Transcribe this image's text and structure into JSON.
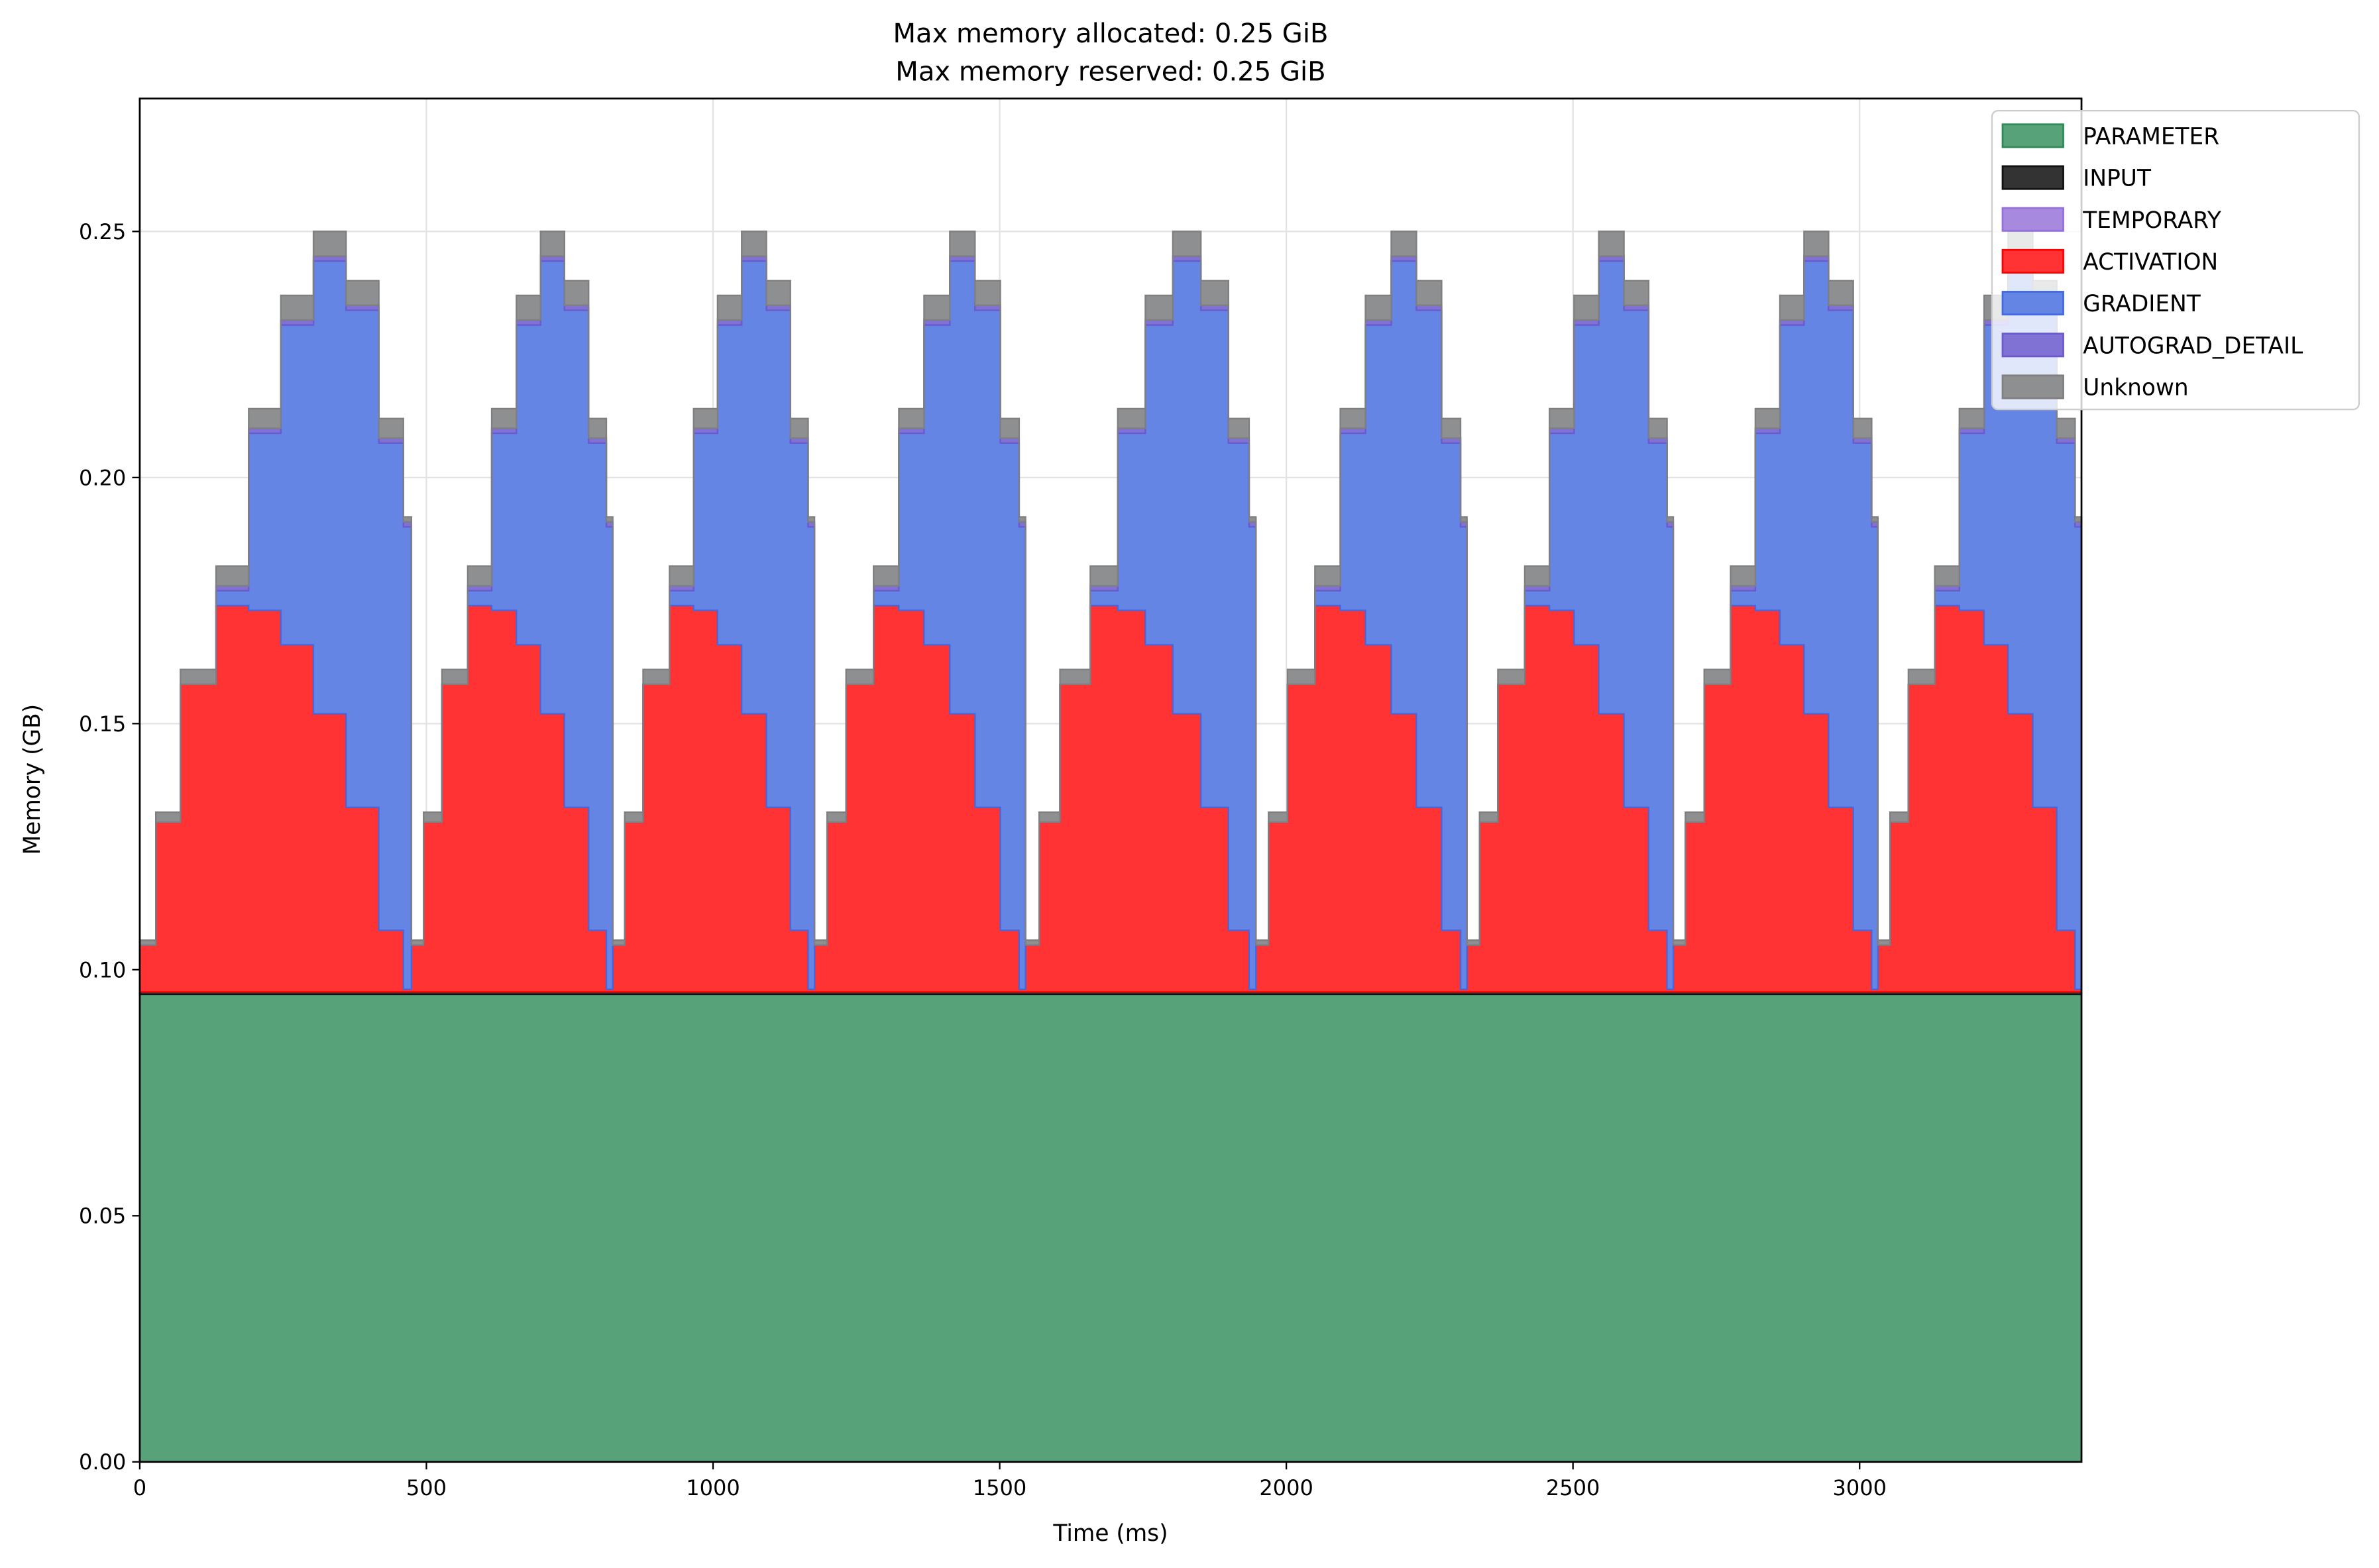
{
  "chart_data": {
    "type": "area",
    "stacked": true,
    "step": "post",
    "title_lines": [
      "Max memory allocated: 0.25 GiB",
      "Max memory reserved: 0.25 GiB"
    ],
    "xlabel": "Time (ms)",
    "ylabel": "Memory (GB)",
    "xlim": [
      0,
      3387
    ],
    "ylim": [
      0,
      0.277
    ],
    "xticks": [
      0,
      500,
      1000,
      1500,
      2000,
      2500,
      3000
    ],
    "xtick_labels": [
      "0",
      "500",
      "1000",
      "1500",
      "2000",
      "2500",
      "3000"
    ],
    "yticks": [
      0,
      0.05,
      0.1,
      0.15,
      0.2,
      0.25
    ],
    "ytick_labels": [
      "0.00",
      "0.05",
      "0.10",
      "0.15",
      "0.20",
      "0.25"
    ],
    "grid": true,
    "legend_position": "upper-right-outside",
    "x": [
      0,
      28,
      71,
      133,
      190,
      246,
      303,
      360,
      417,
      460,
      474,
      495,
      527,
      572,
      614,
      657,
      699,
      741,
      783,
      814,
      825,
      846,
      878,
      924,
      966,
      1008,
      1050,
      1093,
      1135,
      1166,
      1177,
      1199,
      1232,
      1280,
      1324,
      1368,
      1413,
      1457,
      1501,
      1534,
      1545,
      1569,
      1605,
      1658,
      1706,
      1754,
      1802,
      1851,
      1899,
      1935,
      1947,
      1969,
      2002,
      2050,
      2094,
      2138,
      2183,
      2227,
      2271,
      2304,
      2315,
      2337,
      2369,
      2416,
      2459,
      2502,
      2545,
      2589,
      2632,
      2664,
      2675,
      2696,
      2729,
      2775,
      2818,
      2861,
      2903,
      2946,
      2989,
      3021,
      3032,
      3053,
      3085,
      3131,
      3174,
      3217,
      3259,
      3302,
      3344,
      3376
    ],
    "series": [
      {
        "name": "PARAMETER",
        "color": "#58a27a",
        "edge": "#2e8b57",
        "constant": 0.095
      },
      {
        "name": "INPUT",
        "color": "#333333",
        "edge": "#111111",
        "constant": 0.0005
      },
      {
        "name": "TEMPORARY",
        "color": "#a78ae0",
        "edge": "#9370db",
        "constant": 0.0
      },
      {
        "name": "ACTIVATION",
        "color": "#ff3333",
        "edge": "#ff0000",
        "values": [
          0.0095,
          0.0345,
          0.0625,
          0.0785,
          0.0775,
          0.0705,
          0.0565,
          0.0375,
          0.0125,
          0.0005,
          0.0095,
          0.0345,
          0.0625,
          0.0785,
          0.0775,
          0.0705,
          0.0565,
          0.0375,
          0.0125,
          0.0005,
          0.0095,
          0.0345,
          0.0625,
          0.0785,
          0.0775,
          0.0705,
          0.0565,
          0.0375,
          0.0125,
          0.0005,
          0.0095,
          0.0345,
          0.0625,
          0.0785,
          0.0775,
          0.0705,
          0.0565,
          0.0375,
          0.0125,
          0.0005,
          0.0095,
          0.0345,
          0.0625,
          0.0785,
          0.0775,
          0.0705,
          0.0565,
          0.0375,
          0.0125,
          0.0005,
          0.0095,
          0.0345,
          0.0625,
          0.0785,
          0.0775,
          0.0705,
          0.0565,
          0.0375,
          0.0125,
          0.0005,
          0.0095,
          0.0345,
          0.0625,
          0.0785,
          0.0775,
          0.0705,
          0.0565,
          0.0375,
          0.0125,
          0.0005,
          0.0095,
          0.0345,
          0.0625,
          0.0785,
          0.0775,
          0.0705,
          0.0565,
          0.0375,
          0.0125,
          0.0005,
          0.0095,
          0.0345,
          0.0625,
          0.0785,
          0.0775,
          0.0705,
          0.0565,
          0.0375,
          0.0125,
          0.0005
        ]
      },
      {
        "name": "GRADIENT",
        "color": "#6585e4",
        "edge": "#4169e1",
        "values": [
          0,
          0,
          0,
          0.003,
          0.036,
          0.065,
          0.092,
          0.101,
          0.099,
          0.094,
          0,
          0,
          0,
          0.003,
          0.036,
          0.065,
          0.092,
          0.101,
          0.099,
          0.094,
          0,
          0,
          0,
          0.003,
          0.036,
          0.065,
          0.092,
          0.101,
          0.099,
          0.094,
          0,
          0,
          0,
          0.003,
          0.036,
          0.065,
          0.092,
          0.101,
          0.099,
          0.094,
          0,
          0,
          0,
          0.003,
          0.036,
          0.065,
          0.092,
          0.101,
          0.099,
          0.094,
          0,
          0,
          0,
          0.003,
          0.036,
          0.065,
          0.092,
          0.101,
          0.099,
          0.094,
          0,
          0,
          0,
          0.003,
          0.036,
          0.065,
          0.092,
          0.101,
          0.099,
          0.094,
          0,
          0,
          0,
          0.003,
          0.036,
          0.065,
          0.092,
          0.101,
          0.099,
          0.094,
          0,
          0,
          0,
          0.003,
          0.036,
          0.065,
          0.092,
          0.101,
          0.099,
          0.094
        ]
      },
      {
        "name": "AUTOGRAD_DETAIL",
        "color": "#8071d4",
        "edge": "#6a5acd",
        "values": [
          0,
          0,
          0,
          0.001,
          0.001,
          0.001,
          0.001,
          0.001,
          0.001,
          0.001,
          0,
          0,
          0,
          0.001,
          0.001,
          0.001,
          0.001,
          0.001,
          0.001,
          0.001,
          0,
          0,
          0,
          0.001,
          0.001,
          0.001,
          0.001,
          0.001,
          0.001,
          0.001,
          0,
          0,
          0,
          0.001,
          0.001,
          0.001,
          0.001,
          0.001,
          0.001,
          0.001,
          0,
          0,
          0,
          0.001,
          0.001,
          0.001,
          0.001,
          0.001,
          0.001,
          0.001,
          0,
          0,
          0,
          0.001,
          0.001,
          0.001,
          0.001,
          0.001,
          0.001,
          0.001,
          0,
          0,
          0,
          0.001,
          0.001,
          0.001,
          0.001,
          0.001,
          0.001,
          0.001,
          0,
          0,
          0,
          0.001,
          0.001,
          0.001,
          0.001,
          0.001,
          0.001,
          0.001,
          0,
          0,
          0,
          0.001,
          0.001,
          0.001,
          0.001,
          0.001,
          0.001,
          0.001
        ]
      },
      {
        "name": "Unknown",
        "color": "#8e8f90",
        "edge": "#7f7f7f",
        "values": [
          0.001,
          0.002,
          0.003,
          0.004,
          0.004,
          0.005,
          0.005,
          0.005,
          0.004,
          0.001,
          0.001,
          0.002,
          0.003,
          0.004,
          0.004,
          0.005,
          0.005,
          0.005,
          0.004,
          0.001,
          0.001,
          0.002,
          0.003,
          0.004,
          0.004,
          0.005,
          0.005,
          0.005,
          0.004,
          0.001,
          0.001,
          0.002,
          0.003,
          0.004,
          0.004,
          0.005,
          0.005,
          0.005,
          0.004,
          0.001,
          0.001,
          0.002,
          0.003,
          0.004,
          0.004,
          0.005,
          0.005,
          0.005,
          0.004,
          0.001,
          0.001,
          0.002,
          0.003,
          0.004,
          0.004,
          0.005,
          0.005,
          0.005,
          0.004,
          0.001,
          0.001,
          0.002,
          0.003,
          0.004,
          0.004,
          0.005,
          0.005,
          0.005,
          0.004,
          0.001,
          0.001,
          0.002,
          0.003,
          0.004,
          0.004,
          0.005,
          0.005,
          0.005,
          0.004,
          0.001,
          0.001,
          0.002,
          0.003,
          0.004,
          0.004,
          0.005,
          0.005,
          0.005,
          0.004,
          0.001
        ]
      }
    ]
  }
}
